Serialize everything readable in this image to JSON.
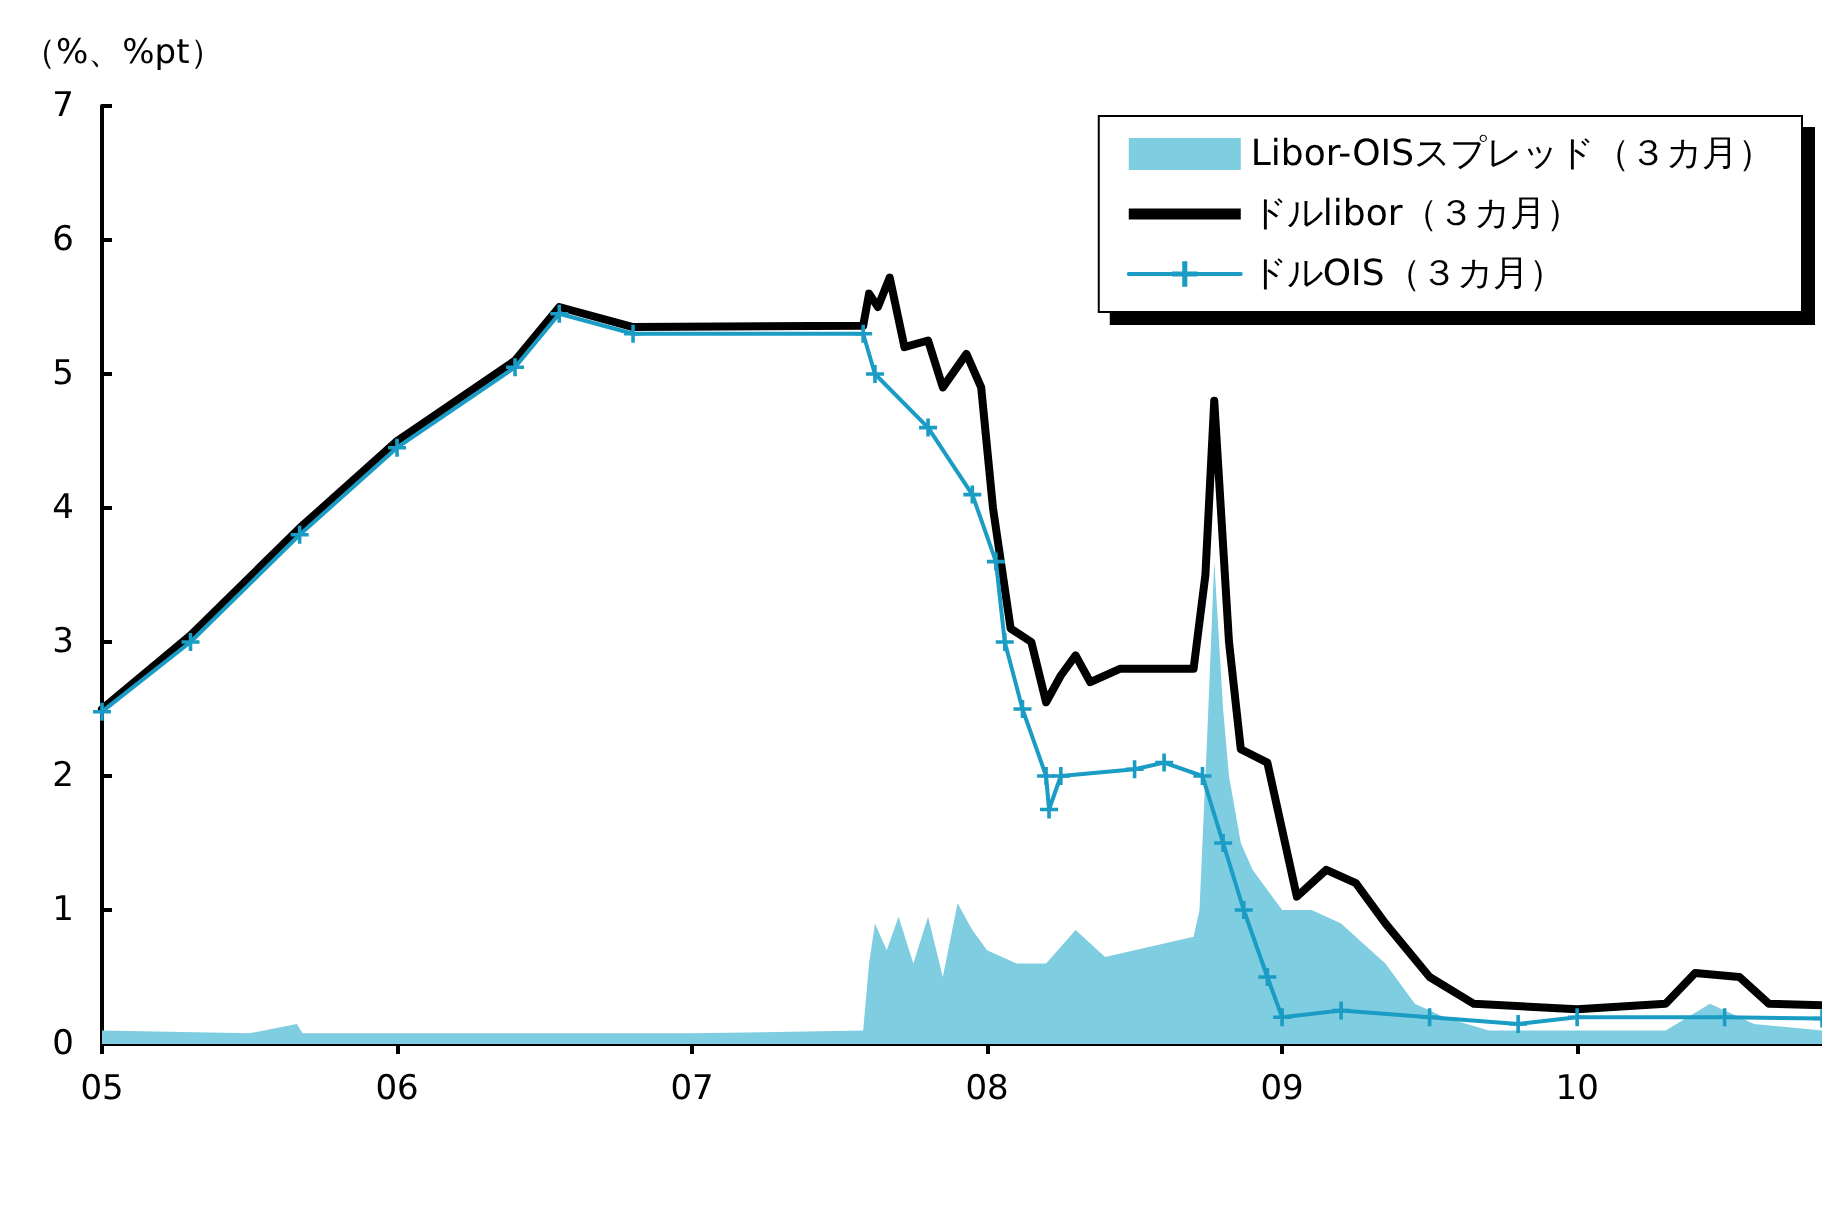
{
  "chart_data": {
    "type": "line",
    "ylabel": "（%、%pt）",
    "xlim": [
      2005,
      2010.83
    ],
    "xticks": [
      {
        "value": 2005,
        "label": "05"
      },
      {
        "value": 2006,
        "label": "06"
      },
      {
        "value": 2007,
        "label": "07"
      },
      {
        "value": 2008,
        "label": "08"
      },
      {
        "value": 2009,
        "label": "09"
      },
      {
        "value": 2010,
        "label": "10"
      }
    ],
    "ylim": [
      0,
      7
    ],
    "yticks": [
      0,
      1,
      2,
      3,
      4,
      5,
      6,
      7
    ],
    "grid": false,
    "legend": "top right",
    "series": [
      {
        "name": "Libor-OISスプレッド（３カ月）",
        "type": "area",
        "color": "#7ecde0",
        "x": [
          2005,
          2005.5,
          2005.66,
          2005.68,
          2006,
          2007,
          2007.58,
          2007.6,
          2007.62,
          2007.66,
          2007.7,
          2007.75,
          2007.8,
          2007.85,
          2007.9,
          2007.95,
          2008,
          2008.1,
          2008.2,
          2008.3,
          2008.4,
          2008.5,
          2008.6,
          2008.7,
          2008.72,
          2008.75,
          2008.77,
          2008.8,
          2008.82,
          2008.86,
          2008.9,
          2009,
          2009.1,
          2009.2,
          2009.3,
          2009.35,
          2009.45,
          2009.55,
          2009.7,
          2010,
          2010.3,
          2010.45,
          2010.6,
          2010.83
        ],
        "values": [
          0.1,
          0.08,
          0.15,
          0.08,
          0.08,
          0.08,
          0.1,
          0.6,
          0.9,
          0.7,
          0.95,
          0.6,
          0.95,
          0.5,
          1.05,
          0.85,
          0.7,
          0.6,
          0.6,
          0.85,
          0.65,
          0.7,
          0.75,
          0.8,
          1.0,
          2.5,
          3.6,
          2.5,
          2.0,
          1.5,
          1.3,
          1.0,
          1.0,
          0.9,
          0.7,
          0.6,
          0.3,
          0.2,
          0.1,
          0.1,
          0.1,
          0.3,
          0.15,
          0.1
        ]
      },
      {
        "name": "ドルlibor（３カ月）",
        "color": "#000000",
        "x": [
          2005,
          2005.3,
          2005.67,
          2006,
          2006.4,
          2006.55,
          2006.8,
          2007.58,
          2007.6,
          2007.63,
          2007.67,
          2007.72,
          2007.8,
          2007.85,
          2007.93,
          2007.98,
          2008.02,
          2008.08,
          2008.15,
          2008.2,
          2008.25,
          2008.3,
          2008.35,
          2008.45,
          2008.7,
          2008.74,
          2008.77,
          2008.82,
          2008.86,
          2008.95,
          2009.05,
          2009.15,
          2009.25,
          2009.35,
          2009.5,
          2009.65,
          2010,
          2010.3,
          2010.4,
          2010.55,
          2010.65,
          2010.83
        ],
        "values": [
          2.5,
          3.05,
          3.85,
          4.5,
          5.1,
          5.5,
          5.35,
          5.36,
          5.6,
          5.5,
          5.72,
          5.2,
          5.25,
          4.9,
          5.15,
          4.9,
          4.0,
          3.1,
          3.0,
          2.55,
          2.75,
          2.9,
          2.7,
          2.8,
          2.8,
          3.5,
          4.8,
          3.0,
          2.2,
          2.1,
          1.1,
          1.3,
          1.2,
          0.9,
          0.5,
          0.3,
          0.26,
          0.3,
          0.53,
          0.5,
          0.3,
          0.29
        ]
      },
      {
        "name": "ドルOIS（３カ月）",
        "type": "line",
        "marker": "cross",
        "color": "#1a9cc4",
        "x": [
          2005,
          2005.3,
          2005.67,
          2006,
          2006.4,
          2006.55,
          2006.8,
          2007.58,
          2007.62,
          2007.8,
          2007.95,
          2008.03,
          2008.06,
          2008.12,
          2008.2,
          2008.21,
          2008.25,
          2008.5,
          2008.6,
          2008.73,
          2008.8,
          2008.87,
          2008.95,
          2009,
          2009.2,
          2009.5,
          2009.8,
          2010,
          2010.5,
          2010.83
        ],
        "values": [
          2.48,
          3.0,
          3.8,
          4.45,
          5.05,
          5.45,
          5.3,
          5.3,
          5.0,
          4.6,
          4.1,
          3.6,
          3.0,
          2.5,
          2.0,
          1.75,
          2.0,
          2.05,
          2.1,
          2.0,
          1.5,
          1.0,
          0.5,
          0.2,
          0.25,
          0.2,
          0.15,
          0.2,
          0.2,
          0.19
        ]
      }
    ]
  }
}
